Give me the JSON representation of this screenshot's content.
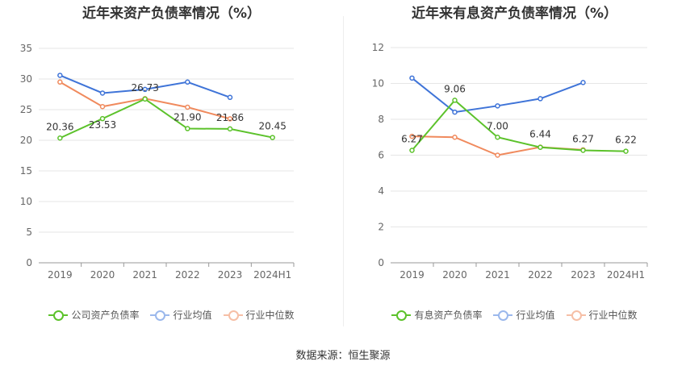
{
  "colors": {
    "company": "#5cc22b",
    "industry_avg": "#3f74d8",
    "industry_median": "#f08a5d",
    "grid": "#e6e6e6",
    "axis_text": "#666666"
  },
  "source": "数据来源：恒生聚源",
  "chart_data": [
    {
      "type": "line",
      "title": "近年来资产负债率情况（%）",
      "categories": [
        "2019",
        "2020",
        "2021",
        "2022",
        "2023",
        "2024H1"
      ],
      "ylim": [
        0,
        35
      ],
      "yticks": [
        0,
        5,
        10,
        15,
        20,
        25,
        30,
        35
      ],
      "grid": true,
      "legend_position": "bottom",
      "series": [
        {
          "name": "公司资产负债率",
          "values": [
            20.36,
            23.53,
            26.73,
            21.9,
            21.86,
            20.45
          ],
          "labels": [
            "20.36",
            "23.53",
            "26.73",
            "21.90",
            "21.86",
            "20.45"
          ]
        },
        {
          "name": "行业均值",
          "values": [
            30.6,
            27.7,
            28.3,
            29.5,
            27.0,
            null
          ]
        },
        {
          "name": "行业中位数",
          "values": [
            29.5,
            25.5,
            26.8,
            25.4,
            23.5,
            null
          ]
        }
      ]
    },
    {
      "type": "line",
      "title": "近年来有息资产负债率情况（%）",
      "categories": [
        "2019",
        "2020",
        "2021",
        "2022",
        "2023",
        "2024H1"
      ],
      "ylim": [
        0,
        12
      ],
      "yticks": [
        0,
        2,
        4,
        6,
        8,
        10,
        12
      ],
      "grid": true,
      "legend_position": "bottom",
      "series": [
        {
          "name": "有息资产负债率",
          "values": [
            6.27,
            9.06,
            7.0,
            6.44,
            6.27,
            6.22
          ],
          "labels": [
            "6.27",
            "9.06",
            "7.00",
            "6.44",
            "6.27",
            "6.22"
          ]
        },
        {
          "name": "行业均值",
          "values": [
            10.3,
            8.4,
            8.75,
            9.15,
            10.05,
            null
          ]
        },
        {
          "name": "行业中位数",
          "values": [
            7.05,
            7.0,
            6.0,
            6.45,
            6.3,
            null
          ]
        }
      ]
    }
  ]
}
